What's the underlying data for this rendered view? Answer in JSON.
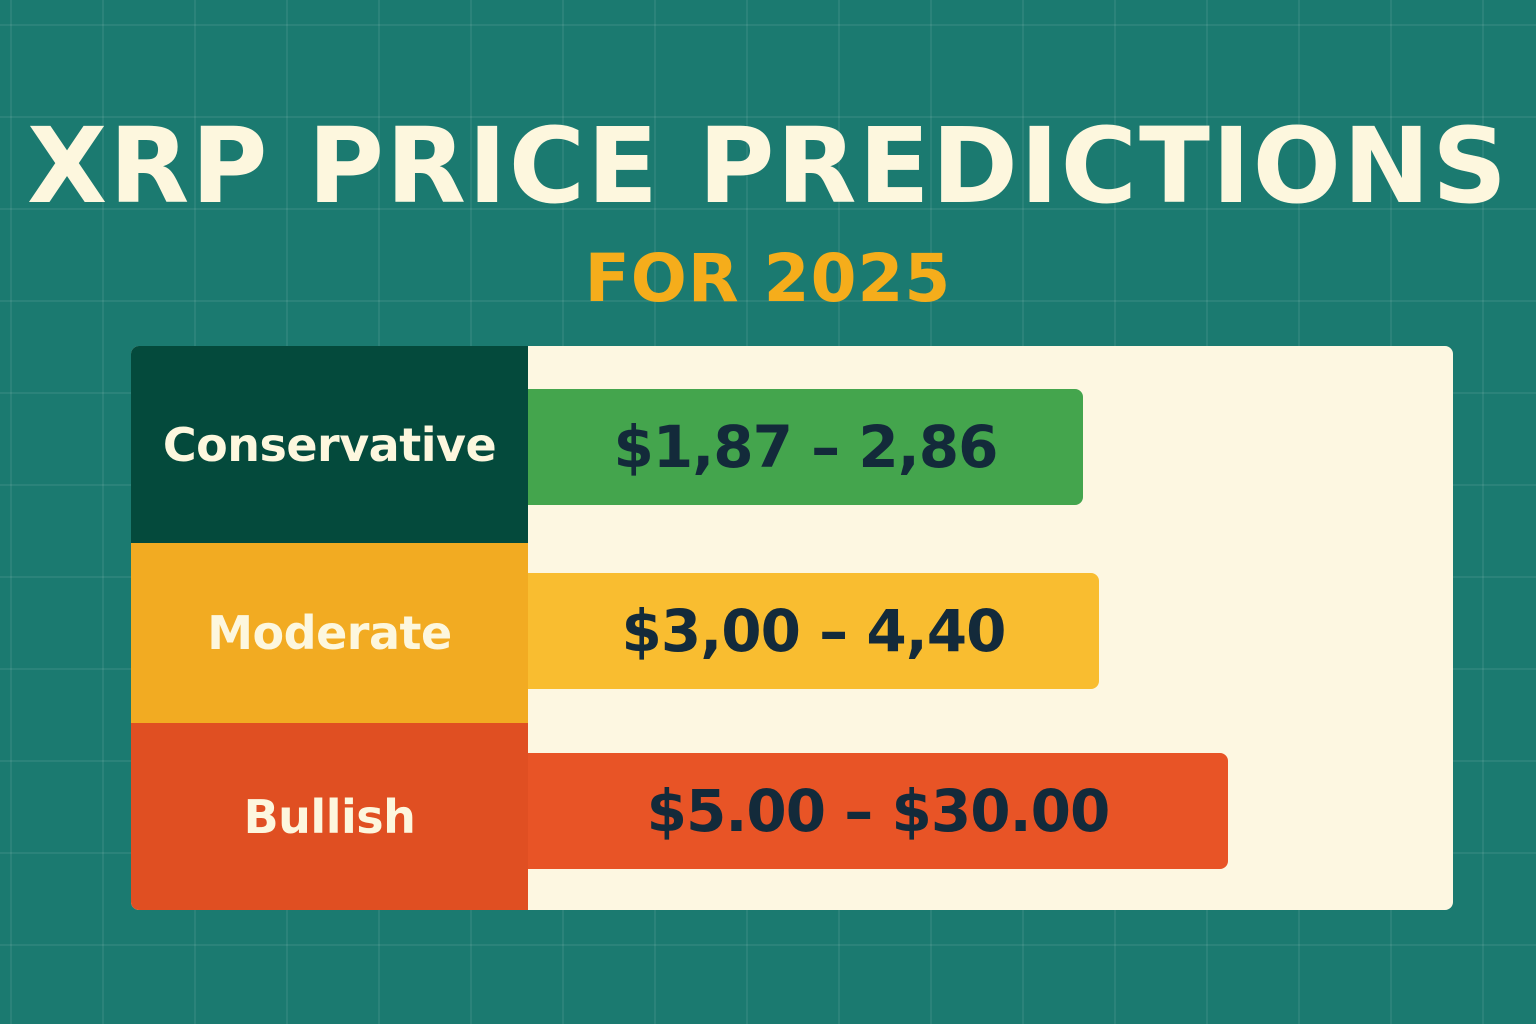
{
  "chart_data": {
    "type": "bar",
    "orientation": "horizontal",
    "title": "XRP PRICE PREDICTIONS",
    "subtitle": "FOR 2025",
    "categories": [
      "Conservative",
      "Moderate",
      "Bullish"
    ],
    "series": [
      {
        "values": [
          "$1,87 – 2,86",
          "$3,00 – 4,40",
          "$5.00 – $30.00"
        ],
        "low": [
          1.87,
          3.0,
          5.0
        ],
        "high": [
          2.86,
          4.4,
          30.0
        ]
      }
    ],
    "grid": false,
    "legend": "none"
  },
  "colors": {
    "background": "#1b7a70",
    "panel": "#fdf7e1",
    "title": "#fdf7de",
    "subtitle": "#f5ad1b",
    "value_text": "#132a3a",
    "rows": [
      {
        "label_bg": "#044a3c",
        "bar": "#44a54d"
      },
      {
        "label_bg": "#f2ab22",
        "bar": "#f9bd30"
      },
      {
        "label_bg": "#e04f22",
        "bar": "#e85426"
      }
    ]
  }
}
